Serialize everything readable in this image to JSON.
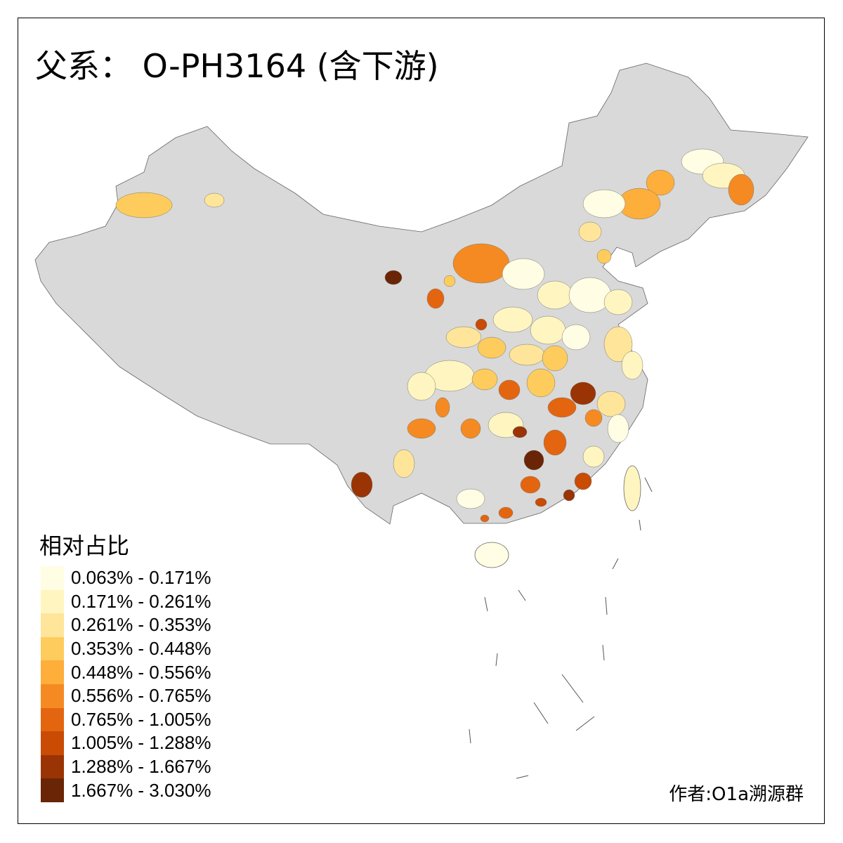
{
  "title": "父系： O-PH3164 (含下游)",
  "legend": {
    "title": "相对占比",
    "items": [
      {
        "label": "0.063% - 0.171%",
        "color": "#FFFDE3"
      },
      {
        "label": "0.171% - 0.261%",
        "color": "#FFF5C0"
      },
      {
        "label": "0.261% - 0.353%",
        "color": "#FEE59A"
      },
      {
        "label": "0.353% - 0.448%",
        "color": "#FECC5C"
      },
      {
        "label": "0.448% - 0.556%",
        "color": "#FDAE3B"
      },
      {
        "label": "0.556% - 0.765%",
        "color": "#F58A22"
      },
      {
        "label": "0.765% - 1.005%",
        "color": "#E4650F"
      },
      {
        "label": "1.005% - 1.288%",
        "color": "#C94B04"
      },
      {
        "label": "1.288% - 1.667%",
        "color": "#9A3404"
      },
      {
        "label": "1.667% - 3.030%",
        "color": "#6A2506"
      }
    ]
  },
  "no_data_color": "#D9D9D9",
  "credit": "作者:O1a溯源群"
}
